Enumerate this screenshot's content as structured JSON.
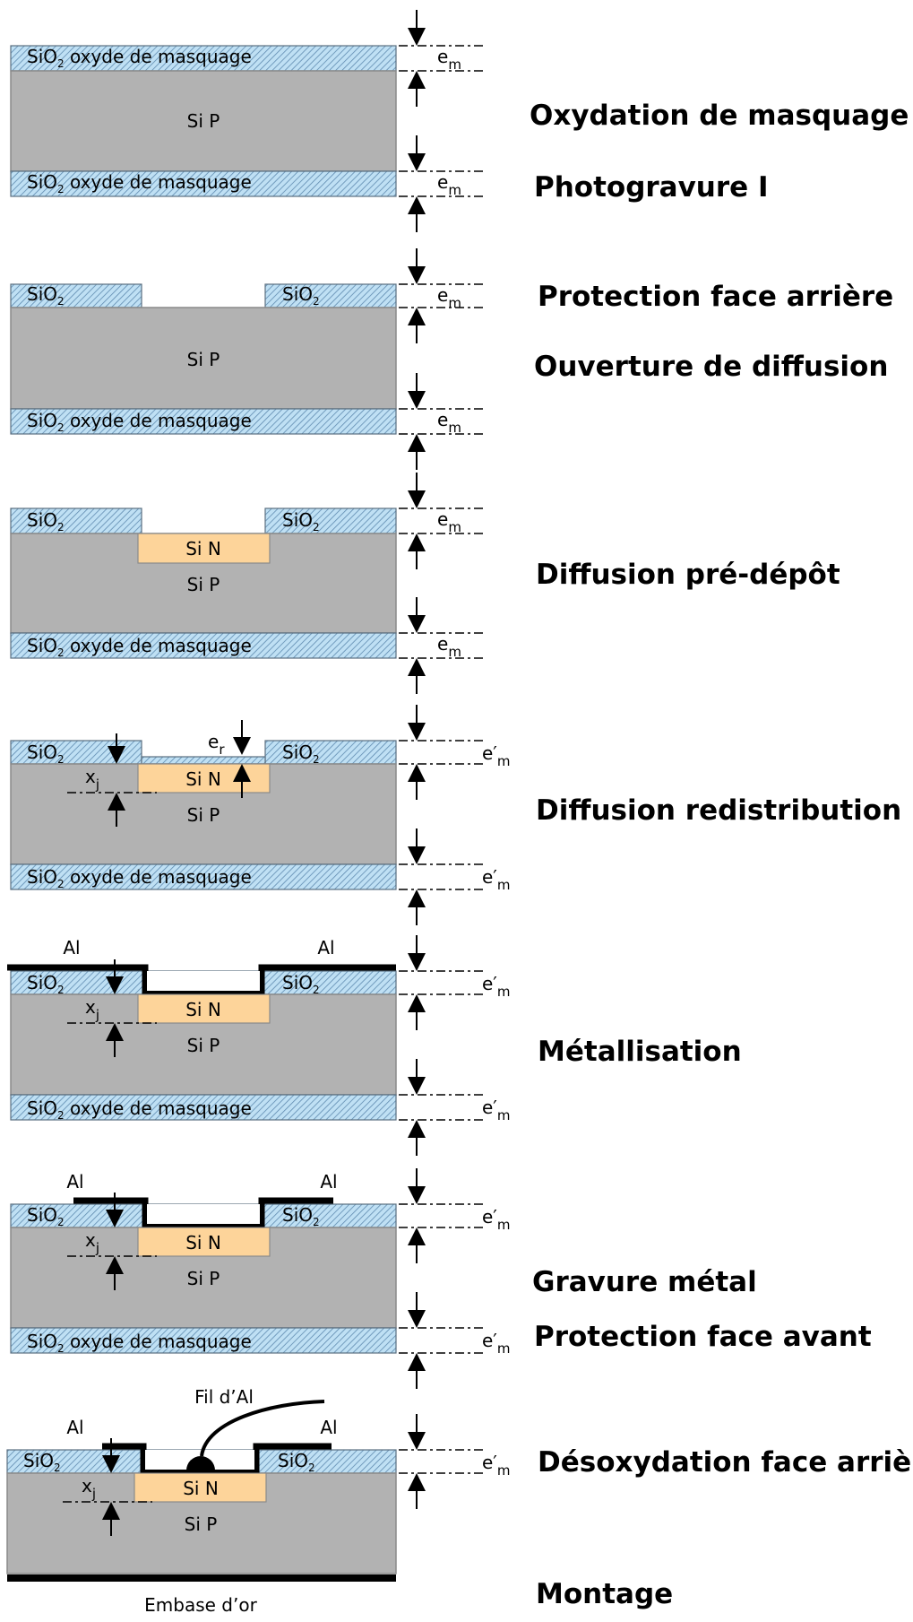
{
  "materials": {
    "si_p": "Si P",
    "si_n": "Si N",
    "sio2_mask_prefix": "SiO",
    "sio2_subscript": "2",
    "sio2_mask_suffix": " oxyde de masquage",
    "al": "Al",
    "fil_al": "Fil d’Al",
    "embase": "Embase d’or"
  },
  "dims": {
    "e": "e",
    "e_prime": "e′",
    "sub_m": "m",
    "x": "x",
    "sub_j": "j",
    "sub_r": "r"
  },
  "steps": [
    "Oxydation de masquage",
    "Photogravure I",
    "Protection face arrière",
    "Ouverture de diffusion",
    "Diffusion pré-dépôt",
    "Diffusion redistribution",
    "Métallisation",
    "Gravure métal",
    "Protection face avant",
    "Désoxydation face arrière",
    "Montage"
  ],
  "colors": {
    "silicon": "#b2b2b2",
    "oxide": "#bfe0f4",
    "oxide_hatch": "#5f8bb0",
    "si_n": "#fdd49a",
    "metal": "#000000"
  }
}
